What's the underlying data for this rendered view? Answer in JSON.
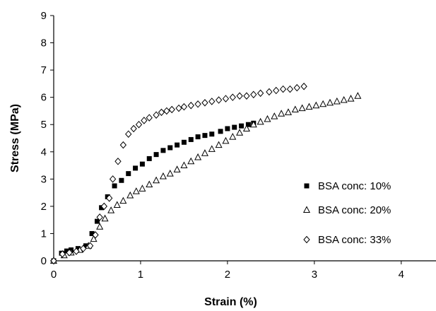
{
  "chart_data": {
    "type": "scatter",
    "title": "",
    "xlabel": "Strain (%)",
    "ylabel": "Stress (MPa)",
    "xlim": [
      0,
      4.4
    ],
    "ylim": [
      0,
      9
    ],
    "xticks": [
      "0",
      "1",
      "2",
      "3",
      "4"
    ],
    "yticks": [
      "0",
      "1",
      "2",
      "3",
      "4",
      "5",
      "6",
      "7",
      "8",
      "9"
    ],
    "grid": false,
    "legend_position": "bottom-right",
    "series": [
      {
        "name": "BSA conc: 10%",
        "marker": "square",
        "x": [
          0.0,
          0.09,
          0.15,
          0.2,
          0.28,
          0.37,
          0.44,
          0.5,
          0.55,
          0.62,
          0.7,
          0.78,
          0.86,
          0.94,
          1.02,
          1.1,
          1.18,
          1.26,
          1.34,
          1.42,
          1.5,
          1.58,
          1.66,
          1.74,
          1.82,
          1.92,
          2.0,
          2.08,
          2.16,
          2.24,
          2.3
        ],
        "y": [
          0.0,
          0.28,
          0.36,
          0.4,
          0.45,
          0.55,
          1.0,
          1.45,
          1.95,
          2.35,
          2.75,
          2.95,
          3.2,
          3.4,
          3.55,
          3.75,
          3.9,
          4.05,
          4.15,
          4.25,
          4.35,
          4.45,
          4.55,
          4.6,
          4.65,
          4.75,
          4.85,
          4.9,
          4.95,
          5.0,
          5.05
        ]
      },
      {
        "name": "BSA conc: 20%",
        "marker": "triangle",
        "x": [
          0.0,
          0.12,
          0.2,
          0.3,
          0.4,
          0.46,
          0.53,
          0.59,
          0.66,
          0.73,
          0.8,
          0.88,
          0.95,
          1.02,
          1.1,
          1.18,
          1.26,
          1.34,
          1.42,
          1.5,
          1.58,
          1.66,
          1.74,
          1.82,
          1.9,
          1.98,
          2.06,
          2.14,
          2.22,
          2.3,
          2.38,
          2.46,
          2.54,
          2.62,
          2.7,
          2.78,
          2.86,
          2.94,
          3.02,
          3.1,
          3.18,
          3.26,
          3.34,
          3.42,
          3.5
        ],
        "y": [
          0.0,
          0.2,
          0.3,
          0.4,
          0.55,
          0.8,
          1.25,
          1.55,
          1.85,
          2.05,
          2.2,
          2.4,
          2.55,
          2.65,
          2.8,
          2.95,
          3.1,
          3.2,
          3.35,
          3.5,
          3.65,
          3.8,
          3.95,
          4.1,
          4.25,
          4.4,
          4.55,
          4.7,
          4.85,
          5.0,
          5.1,
          5.2,
          5.3,
          5.4,
          5.45,
          5.55,
          5.6,
          5.65,
          5.7,
          5.75,
          5.8,
          5.85,
          5.9,
          5.95,
          6.05
        ]
      },
      {
        "name": "BSA conc: 33%",
        "marker": "diamond",
        "x": [
          0.0,
          0.1,
          0.18,
          0.26,
          0.34,
          0.42,
          0.48,
          0.53,
          0.58,
          0.64,
          0.68,
          0.74,
          0.8,
          0.86,
          0.92,
          0.98,
          1.04,
          1.1,
          1.18,
          1.24,
          1.3,
          1.36,
          1.44,
          1.5,
          1.58,
          1.66,
          1.74,
          1.82,
          1.9,
          1.98,
          2.06,
          2.14,
          2.22,
          2.3,
          2.38,
          2.48,
          2.56,
          2.64,
          2.72,
          2.8,
          2.88
        ],
        "y": [
          0.0,
          0.25,
          0.3,
          0.35,
          0.45,
          0.55,
          0.95,
          1.6,
          2.0,
          2.3,
          3.0,
          3.65,
          4.25,
          4.65,
          4.85,
          5.0,
          5.15,
          5.25,
          5.35,
          5.45,
          5.5,
          5.55,
          5.6,
          5.65,
          5.7,
          5.75,
          5.8,
          5.85,
          5.9,
          5.95,
          6.0,
          6.05,
          6.05,
          6.1,
          6.15,
          6.2,
          6.25,
          6.3,
          6.3,
          6.35,
          6.4
        ]
      }
    ]
  }
}
